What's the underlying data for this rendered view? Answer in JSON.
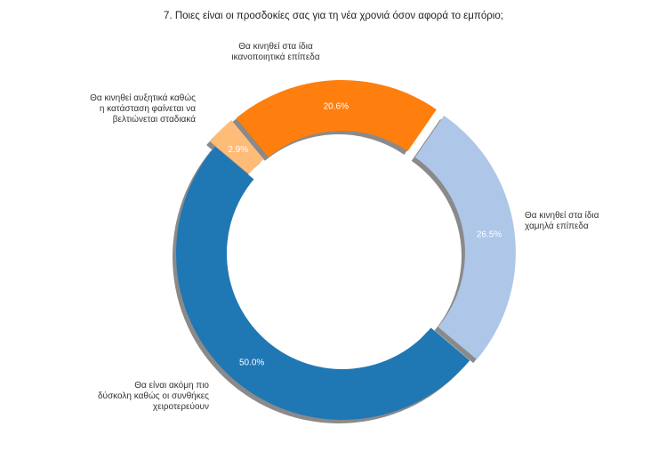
{
  "chart_data": {
    "type": "pie",
    "style": "donut",
    "title": "7. Ποιες είναι οι προσδοκίες σας για τη νέα χρονιά όσον αφορά το εμπόριο;",
    "start_angle_deg": 140,
    "counterclockwise": true,
    "slices": [
      {
        "label": [
          "Θα είναι ακόμη πιο",
          "δύσκολη καθώς οι συνθήκες",
          "χειροτερεύουν"
        ],
        "value": 50.0,
        "pct_label": "50.0%",
        "color": "#1f77b4",
        "pct_color": "#ffffff"
      },
      {
        "label": [
          "Θα κινηθεί στα ίδια",
          "χαμηλά επίπεδα"
        ],
        "value": 26.5,
        "pct_label": "26.5%",
        "color": "#aec7e8",
        "pct_color": "#ffffff"
      },
      {
        "label": [
          "Θα κινηθεί στα ίδια",
          "ικανοποιητικά επίπεδα"
        ],
        "value": 20.6,
        "pct_label": "20.6%",
        "color": "#ff7f0e",
        "pct_color": "#ffffff"
      },
      {
        "label": [
          "Θα κινηθεί αυξητικά καθώς",
          "η κατάσταση φαίνεται να",
          "βελτιώνεται σταδιακά"
        ],
        "value": 2.9,
        "pct_label": "2.9%",
        "color": "#ffbb78",
        "pct_color": "#ffffff"
      }
    ],
    "shadow": true
  }
}
